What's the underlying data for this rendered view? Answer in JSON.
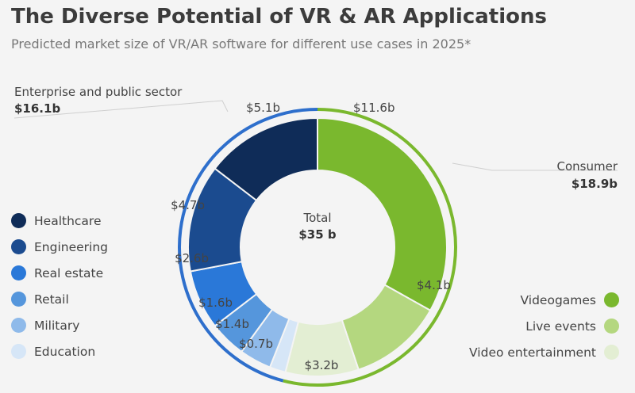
{
  "title": "The Diverse Potential of VR & AR Applications",
  "subtitle": "Predicted market size of VR/AR software for different use cases in 2025*",
  "chart_data": {
    "type": "pie",
    "style": "donut with outer group ring",
    "center": {
      "label": "Total",
      "value": "$35 b"
    },
    "groups": [
      {
        "name": "Enterprise and public sector",
        "value": 16.1,
        "label": "$16.1b",
        "color": "#2e6fcc"
      },
      {
        "name": "Consumer",
        "value": 18.9,
        "label": "$18.9b",
        "color": "#7ab82e"
      }
    ],
    "slices": [
      {
        "name": "Videogames",
        "group": "Consumer",
        "value": 11.6,
        "label": "$11.6b",
        "color": "#7ab82e"
      },
      {
        "name": "Live events",
        "group": "Consumer",
        "value": 4.1,
        "label": "$4.1b",
        "color": "#b4d77f"
      },
      {
        "name": "Video entertainment",
        "group": "Consumer",
        "value": 3.2,
        "label": "$3.2b",
        "color": "#e3eed3"
      },
      {
        "name": "Education",
        "group": "Enterprise and public sector",
        "value": 0.7,
        "label": "$0.7b",
        "color": "#d6e6f7"
      },
      {
        "name": "Military",
        "group": "Enterprise and public sector",
        "value": 1.4,
        "label": "$1.4b",
        "color": "#8fbaea"
      },
      {
        "name": "Retail",
        "group": "Enterprise and public sector",
        "value": 1.6,
        "label": "$1.6b",
        "color": "#5596dc"
      },
      {
        "name": "Real estate",
        "group": "Enterprise and public sector",
        "value": 2.6,
        "label": "$2.6b",
        "color": "#2a78d8"
      },
      {
        "name": "Engineering",
        "group": "Enterprise and public sector",
        "value": 4.7,
        "label": "$4.7b",
        "color": "#1b4b8f"
      },
      {
        "name": "Healthcare",
        "group": "Enterprise and public sector",
        "value": 5.1,
        "label": "$5.1b",
        "color": "#0f2c58"
      }
    ]
  },
  "legend_left": [
    {
      "name": "Healthcare",
      "color": "#0f2c58"
    },
    {
      "name": "Engineering",
      "color": "#1b4b8f"
    },
    {
      "name": "Real estate",
      "color": "#2a78d8"
    },
    {
      "name": "Retail",
      "color": "#5596dc"
    },
    {
      "name": "Military",
      "color": "#8fbaea"
    },
    {
      "name": "Education",
      "color": "#d6e6f7"
    }
  ],
  "legend_right": [
    {
      "name": "Videogames",
      "color": "#7ab82e"
    },
    {
      "name": "Live events",
      "color": "#b4d77f"
    },
    {
      "name": "Video entertainment",
      "color": "#e3eed3"
    }
  ]
}
